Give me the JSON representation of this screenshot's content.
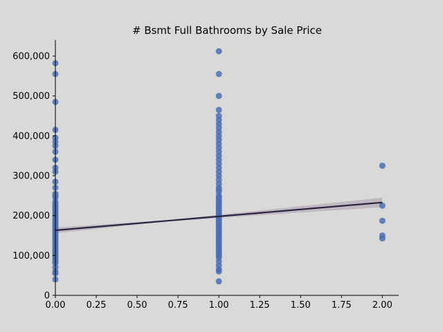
{
  "chart_data": {
    "type": "scatter",
    "title": "# Bsmt Full Bathrooms by Sale Price",
    "xlabel": "",
    "ylabel": "",
    "xlim": [
      0.0,
      2.1
    ],
    "ylim": [
      0,
      640000
    ],
    "grid": false,
    "xticks": [
      0.0,
      0.25,
      0.5,
      0.75,
      1.0,
      1.25,
      1.5,
      1.75,
      2.0
    ],
    "xtick_labels": [
      "0.00",
      "0.25",
      "0.50",
      "0.75",
      "1.00",
      "1.25",
      "1.50",
      "1.75",
      "2.00"
    ],
    "yticks": [
      0,
      100000,
      200000,
      300000,
      400000,
      500000,
      600000
    ],
    "ytick_labels": [
      "0",
      "100,000",
      "200,000",
      "300,000",
      "400,000",
      "500,000",
      "600,000"
    ],
    "point_color": "#4c6fb1",
    "line_color": "#2b2240",
    "band_color": "#b8b3bb",
    "series": [
      {
        "x": [
          0,
          0,
          0,
          0,
          0,
          0,
          0,
          0,
          0,
          0,
          0,
          0,
          0,
          0,
          0,
          0,
          0,
          0,
          0,
          0,
          0,
          0,
          0,
          0,
          0,
          0,
          0,
          0,
          0,
          0,
          0,
          0,
          0,
          0,
          0,
          0,
          0,
          0,
          0,
          0,
          0,
          0,
          0,
          0,
          0,
          0,
          0,
          0,
          0,
          0,
          0,
          0
        ],
        "y": [
          40000,
          55000,
          60000,
          70000,
          80000,
          85000,
          90000,
          95000,
          100000,
          105000,
          110000,
          115000,
          120000,
          125000,
          130000,
          135000,
          140000,
          145000,
          150000,
          155000,
          160000,
          165000,
          170000,
          175000,
          180000,
          185000,
          190000,
          195000,
          200000,
          205000,
          210000,
          215000,
          220000,
          225000,
          230000,
          235000,
          245000,
          255000,
          270000,
          285000,
          310000,
          320000,
          340000,
          360000,
          375000,
          385000,
          395000,
          415000,
          485000,
          555000,
          582000,
          250000
        ]
      },
      {
        "x": [
          1,
          1,
          1,
          1,
          1,
          1,
          1,
          1,
          1,
          1,
          1,
          1,
          1,
          1,
          1,
          1,
          1,
          1,
          1,
          1,
          1,
          1,
          1,
          1,
          1,
          1,
          1,
          1,
          1,
          1,
          1,
          1,
          1,
          1,
          1,
          1,
          1,
          1,
          1,
          1,
          1,
          1,
          1,
          1,
          1,
          1,
          1,
          1,
          1,
          1,
          1,
          1,
          1,
          1,
          1,
          1,
          1,
          1,
          1,
          1,
          1,
          1
        ],
        "y": [
          35000,
          60000,
          65000,
          75000,
          85000,
          95000,
          100000,
          105000,
          110000,
          115000,
          120000,
          125000,
          130000,
          135000,
          140000,
          145000,
          150000,
          155000,
          160000,
          165000,
          170000,
          175000,
          180000,
          185000,
          190000,
          195000,
          200000,
          205000,
          210000,
          215000,
          220000,
          225000,
          230000,
          235000,
          240000,
          250000,
          260000,
          270000,
          280000,
          290000,
          300000,
          310000,
          320000,
          330000,
          340000,
          350000,
          360000,
          370000,
          380000,
          390000,
          400000,
          410000,
          420000,
          430000,
          440000,
          450000,
          465000,
          500000,
          555000,
          612000,
          245000,
          265000
        ]
      },
      {
        "x": [
          2,
          2,
          2,
          2,
          2
        ],
        "y": [
          143000,
          150000,
          187000,
          225000,
          325000
        ]
      }
    ],
    "regression": {
      "x": [
        0,
        2
      ],
      "y": [
        163000,
        233000
      ],
      "ci_half_width": [
        4000,
        12000
      ]
    }
  }
}
